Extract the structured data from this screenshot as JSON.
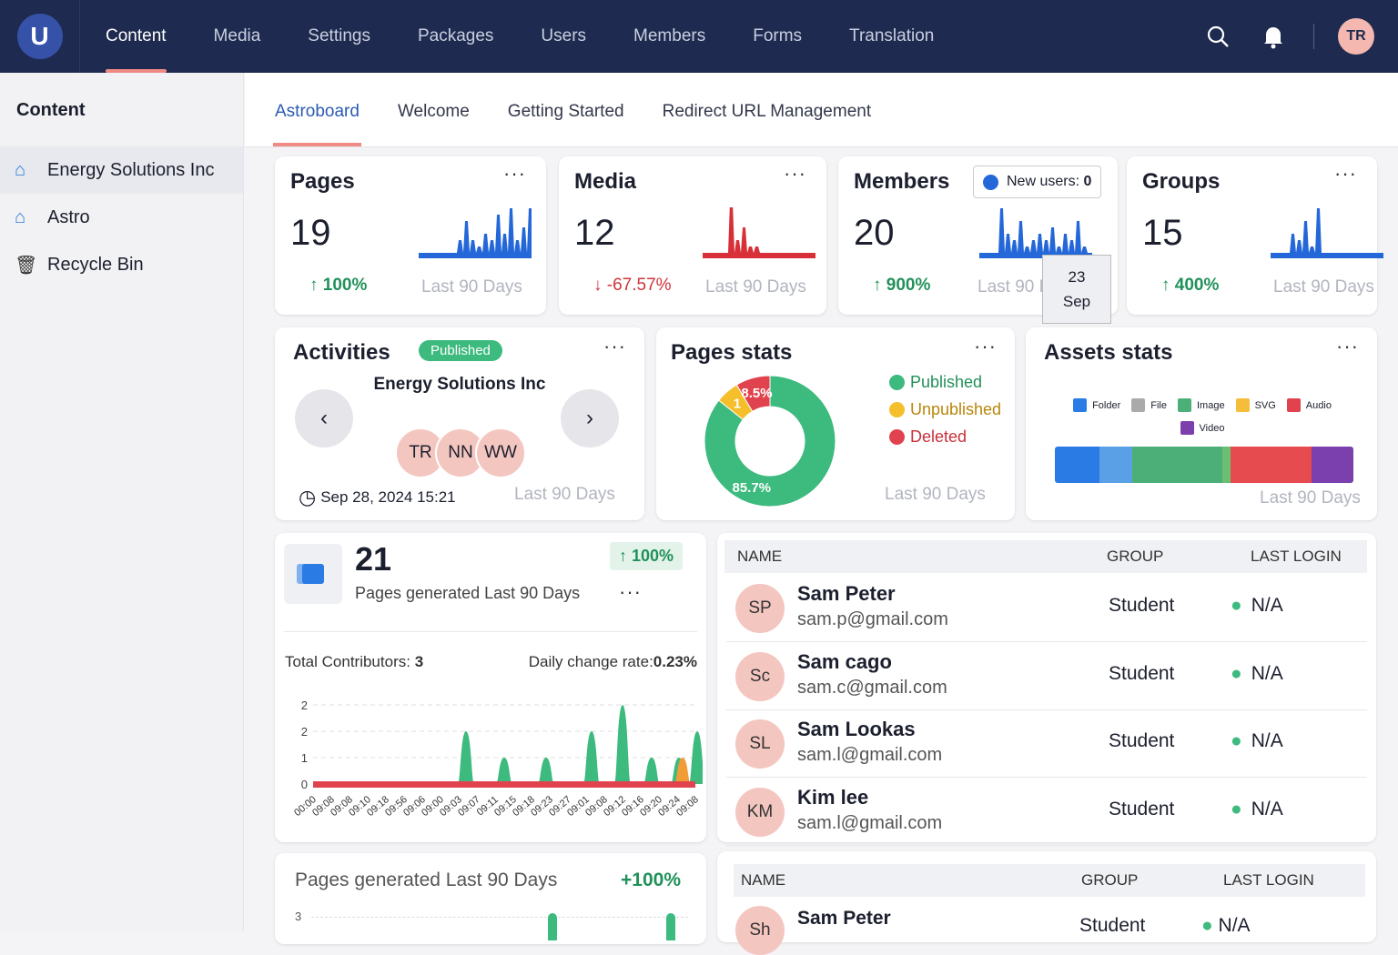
{
  "nav": {
    "items": [
      "Content",
      "Media",
      "Settings",
      "Packages",
      "Users",
      "Members",
      "Forms",
      "Translation"
    ],
    "active": 0,
    "avatar": "TR",
    "logo": "U"
  },
  "sidebar": {
    "title": "Content",
    "items": [
      "Energy Solutions Inc",
      "Astro",
      "Recycle Bin"
    ]
  },
  "tabs": [
    "Astroboard",
    "Welcome",
    "Getting Started",
    "Redirect URL Management"
  ],
  "stats": [
    {
      "title": "Pages",
      "value": "19",
      "change": "100%",
      "dir": "up",
      "period": "Last 90 Days",
      "color": "#2467d8"
    },
    {
      "title": "Media",
      "value": "12",
      "change": "-67.57%",
      "dir": "down",
      "period": "Last 90 Days",
      "color": "#d83038"
    },
    {
      "title": "Members",
      "value": "20",
      "change": "900%",
      "dir": "up",
      "period": "Last 90 Days",
      "color": "#2467d8",
      "legend": "New users:",
      "legend_value": "0",
      "tooltip_day": "23",
      "tooltip_month": "Sep"
    },
    {
      "title": "Groups",
      "value": "15",
      "change": "400%",
      "dir": "up",
      "period": "Last 90 Days",
      "color": "#2467d8"
    }
  ],
  "activities": {
    "title": "Activities",
    "badge": "Published",
    "site": "Energy Solutions Inc",
    "avatars": [
      "TR",
      "NN",
      "WW"
    ],
    "date": "Sep 28, 2024 15:21",
    "period": "Last 90 Days"
  },
  "pages_stats": {
    "title": "Pages stats",
    "legend": [
      "Published",
      "Unpublished",
      "Deleted"
    ],
    "colors": [
      "#3dba7e",
      "#f4bf2a",
      "#e0434e"
    ],
    "values": [
      85.7,
      5.8,
      8.5
    ],
    "labels": [
      "85.7%",
      "1",
      "8.5%"
    ],
    "period": "Last 90 Days"
  },
  "assets_stats": {
    "title": "Assets stats",
    "legend": [
      "Folder",
      "File",
      "Image",
      "SVG",
      "Audio",
      "Video"
    ],
    "colors": [
      "#2a7be4",
      "#aaaaaa",
      "#4caf78",
      "#f5be3a",
      "#e0434e",
      "#7b3fae"
    ],
    "segments": [
      {
        "color": "#2a7be4",
        "pct": 15
      },
      {
        "color": "#5aa0e6",
        "pct": 11
      },
      {
        "color": "#4caf78",
        "pct": 30
      },
      {
        "color": "#6bbf72",
        "pct": 3
      },
      {
        "color": "#e64b50",
        "pct": 27
      },
      {
        "color": "#7b3fae",
        "pct": 14
      }
    ],
    "period": "Last 90 Days"
  },
  "generated": {
    "count": "21",
    "label": "Pages generated Last 90 Days",
    "change": "100%",
    "contributors_label": "Total Contributors:",
    "contributors": "3",
    "rate_label": "Daily change rate:",
    "rate": "0.23%"
  },
  "chart_data": {
    "type": "area",
    "ylabels": [
      "0",
      "1",
      "2",
      "2"
    ],
    "ylim": [
      0,
      3
    ],
    "x": [
      "00:00",
      "09:08",
      "09:08",
      "09:10",
      "09:18",
      "09:56",
      "09:06",
      "09:00",
      "09:03",
      "09:07",
      "09:11",
      "09:15",
      "09:18",
      "09:23",
      "09:27",
      "09:01",
      "09:08",
      "09:12",
      "09:16",
      "09:20",
      "09:24",
      "09:08"
    ],
    "series": [
      {
        "name": "Published",
        "color": "#3dba7e",
        "peaks": [
          [
            8.4,
            2
          ],
          [
            10.5,
            1
          ],
          [
            12.8,
            1
          ],
          [
            15.3,
            2
          ],
          [
            17,
            3
          ],
          [
            18.6,
            1
          ],
          [
            20.1,
            1
          ],
          [
            21.1,
            2
          ],
          [
            21.6,
            1
          ],
          [
            22.4,
            3
          ]
        ]
      },
      {
        "name": "Unpublished",
        "color": "#f29c38",
        "peaks": [
          [
            20.3,
            1
          ]
        ]
      },
      {
        "name": "Deleted",
        "color": "#c8304f",
        "peaks": [
          [
            22.7,
            2
          ]
        ]
      }
    ]
  },
  "generated2": {
    "title": "Pages generated Last 90 Days",
    "change": "+100%",
    "ytick": "3"
  },
  "users_table": {
    "headers": [
      "NAME",
      "GROUP",
      "LAST LOGIN"
    ],
    "rows": [
      {
        "initials": "SP",
        "name": "Sam Peter",
        "email": "sam.p@gmail.com",
        "group": "Student",
        "login": "N/A"
      },
      {
        "initials": "Sc",
        "name": "Sam cago",
        "email": "sam.c@gmail.com",
        "group": "Student",
        "login": "N/A"
      },
      {
        "initials": "SL",
        "name": "Sam Lookas",
        "email": "sam.l@gmail.com",
        "group": "Student",
        "login": "N/A"
      },
      {
        "initials": "KM",
        "name": "Kim lee",
        "email": "sam.l@gmail.com",
        "group": "Student",
        "login": "N/A"
      }
    ]
  },
  "users_table2": {
    "headers": [
      "NAME",
      "GROUP",
      "LAST LOGIN"
    ],
    "row": {
      "initials": "Sh",
      "name": "Sam Peter",
      "group": "Student",
      "login": "N/A"
    }
  }
}
